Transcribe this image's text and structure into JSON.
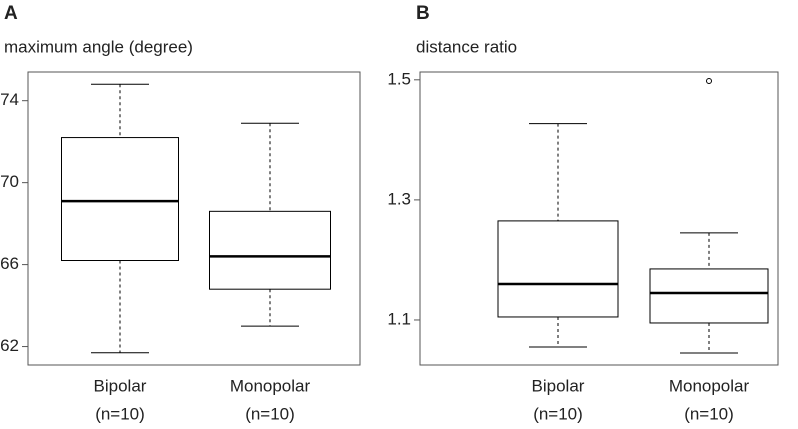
{
  "chart_data": [
    {
      "type": "box",
      "panel": "A",
      "ylabel": "maximum angle (degree)",
      "categories": [
        "Bipolar",
        "Monopolar"
      ],
      "sample_sizes": [
        "(n=10)",
        "(n=10)"
      ],
      "boxes": [
        {
          "min": 61.7,
          "q1": 66.2,
          "median": 69.1,
          "q3": 72.2,
          "max": 74.8,
          "outliers": []
        },
        {
          "min": 63.0,
          "q1": 64.8,
          "median": 66.4,
          "q3": 68.6,
          "max": 72.9,
          "outliers": []
        }
      ],
      "ylim": [
        61.1,
        75.4
      ],
      "yticks": [
        62,
        66,
        70,
        74
      ],
      "color": "#000000"
    },
    {
      "type": "box",
      "panel": "B",
      "ylabel": "distance ratio",
      "categories": [
        "Bipolar",
        "Monopolar"
      ],
      "sample_sizes": [
        "(n=10)",
        "(n=10)"
      ],
      "boxes": [
        {
          "min": 1.055,
          "q1": 1.105,
          "median": 1.16,
          "q3": 1.265,
          "max": 1.427,
          "outliers": []
        },
        {
          "min": 1.045,
          "q1": 1.095,
          "median": 1.145,
          "q3": 1.185,
          "max": 1.245,
          "outliers": [
            1.498
          ]
        }
      ],
      "ylim": [
        1.025,
        1.513
      ],
      "yticks": [
        {
          "value": 1.1,
          "label": "1.1"
        },
        {
          "value": 1.3,
          "label": "1.3"
        },
        {
          "value": 1.5,
          "label": "1.5"
        }
      ],
      "color": "#000000"
    }
  ]
}
